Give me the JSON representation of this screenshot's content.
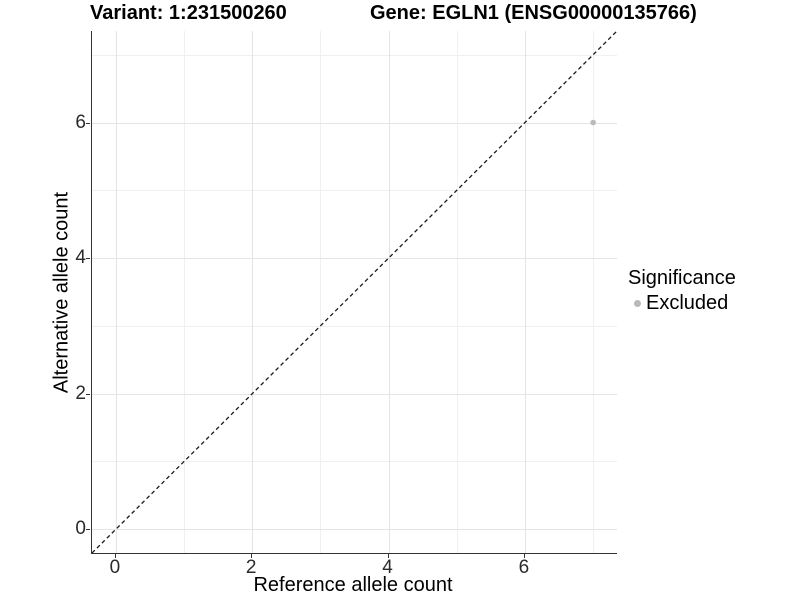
{
  "titles": {
    "variant": "Variant: 1:231500260",
    "gene": "Gene: EGLN1 (ENSG00000135766)"
  },
  "chart_data": {
    "type": "scatter",
    "title_left": "Variant: 1:231500260",
    "title_right": "Gene: EGLN1 (ENSG00000135766)",
    "xlabel": "Reference allele count",
    "ylabel": "Alternative allele count",
    "xlim": [
      -0.35,
      7.35
    ],
    "ylim": [
      -0.35,
      7.35
    ],
    "x_major_ticks": [
      0,
      2,
      4,
      6
    ],
    "x_minor_ticks": [
      1,
      3,
      5,
      7
    ],
    "y_major_ticks": [
      0,
      2,
      4,
      6
    ],
    "y_minor_ticks": [
      1,
      3,
      5,
      7
    ],
    "grid": true,
    "legend_position": "right",
    "reference_line": {
      "type": "identity",
      "slope": 1,
      "intercept": 0,
      "style": "dashed",
      "color": "#1a1a1a"
    },
    "series": [
      {
        "name": "Excluded",
        "color": "#b9b9b9",
        "points": [
          {
            "x": 7,
            "y": 6
          }
        ]
      }
    ],
    "legend": {
      "title": "Significance",
      "entries": [
        {
          "label": "Excluded",
          "color": "#b9b9b9"
        }
      ]
    }
  },
  "colors": {
    "background": "#ffffff",
    "axis_line": "#333333",
    "grid_major": "#e4e4e4",
    "grid_minor": "#f0f0f0",
    "point": "#b9b9b9",
    "reference_line": "#1a1a1a"
  }
}
